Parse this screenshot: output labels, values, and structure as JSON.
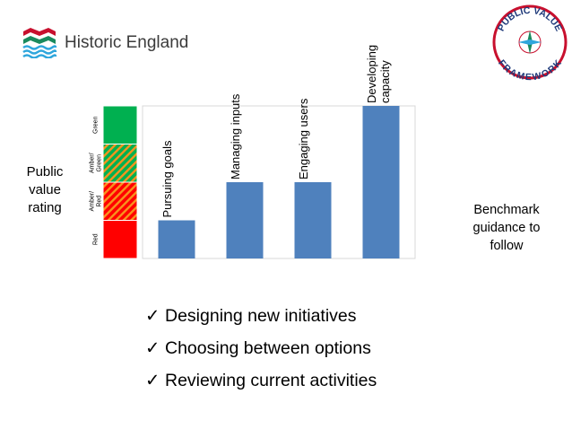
{
  "brand": {
    "name": "Historic England",
    "red": "#c8102e",
    "green": "#1a8a5e",
    "blue": "#2fa6dc"
  },
  "badge": {
    "text_top": "PUBLIC VALUE",
    "text_bottom": "FRAMEWORK"
  },
  "rating_label": {
    "line1": "Public",
    "line2": "value",
    "line3": "rating"
  },
  "benchmark_note": {
    "line1": "Benchmark",
    "line2": "guidance to",
    "line3": "follow"
  },
  "chart_data": {
    "type": "bar",
    "categories": [
      "Pursuing goals",
      "Managing inputs",
      "Engaging users",
      "Developing capacity"
    ],
    "category_lines": [
      [
        "Pursuing goals"
      ],
      [
        "Managing inputs"
      ],
      [
        "Engaging users"
      ],
      [
        "Developing",
        "capacity"
      ]
    ],
    "values": [
      1,
      2,
      2,
      4
    ],
    "ylim": [
      0,
      4
    ],
    "bar_color": "#4f81bd",
    "rating_bands": [
      {
        "lines": [
          "Red"
        ],
        "color": "#ff0000",
        "pattern": "solid"
      },
      {
        "lines": [
          "Amber/",
          "Red"
        ],
        "color": "#ff0000",
        "stripe": "#f7941d",
        "pattern": "striped"
      },
      {
        "lines": [
          "Amber/",
          "Green"
        ],
        "color": "#00b050",
        "stripe": "#f7941d",
        "pattern": "striped"
      },
      {
        "lines": [
          "Green"
        ],
        "color": "#00b050",
        "pattern": "solid"
      }
    ],
    "grid": false
  },
  "checklist": {
    "tick": "✓",
    "items": [
      "Designing new initiatives",
      "Choosing between options",
      "Reviewing current activities"
    ]
  }
}
